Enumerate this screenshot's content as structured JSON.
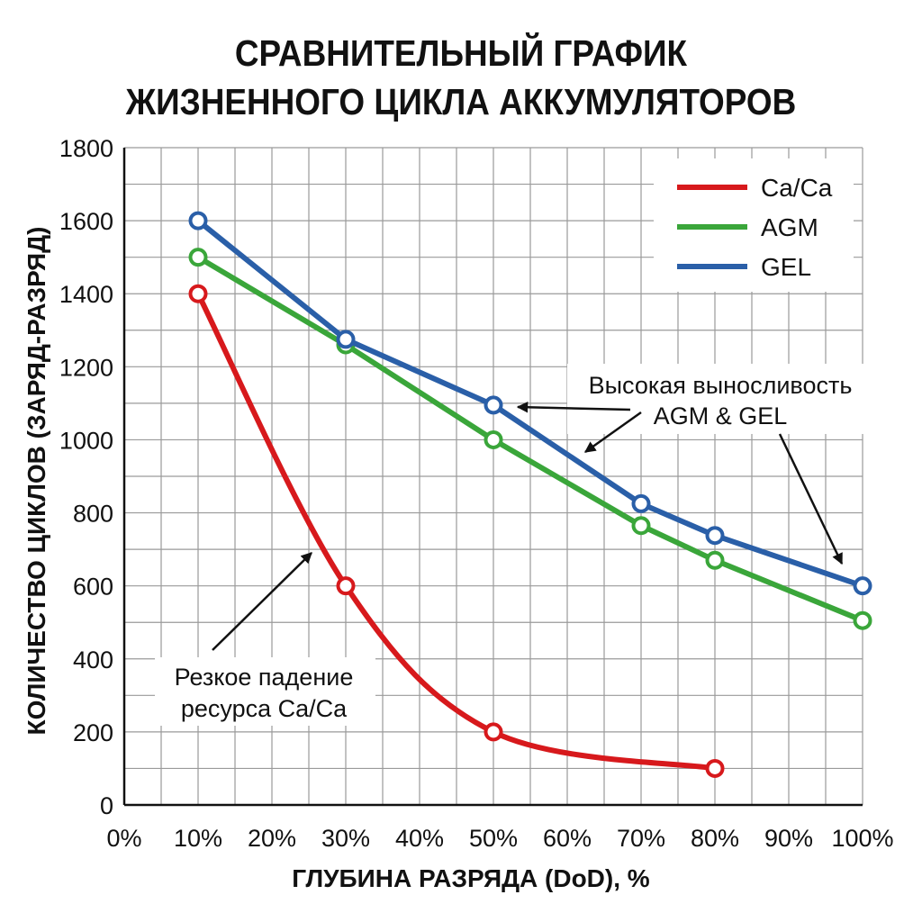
{
  "title_lines": [
    "СРАВНИТЕЛЬНЫЙ ГРАФИК",
    "ЖИЗНЕННОГО ЦИКЛА АККУМУЛЯТОРОВ"
  ],
  "chart_data": {
    "type": "line",
    "title": "СРАВНИТЕЛЬНЫЙ ГРАФИК ЖИЗНЕННОГО ЦИКЛА АККУМУЛЯТОРОВ",
    "xlabel": "ГЛУБИНА РАЗРЯДА (DoD), %",
    "ylabel": "КОЛИЧЕСТВО ЦИКЛОВ (ЗАРЯД-РАЗРЯД)",
    "xlim": [
      0,
      100
    ],
    "ylim": [
      0,
      1800
    ],
    "x_ticks": [
      0,
      10,
      20,
      30,
      40,
      50,
      60,
      70,
      80,
      90,
      100
    ],
    "x_tick_labels": [
      "0%",
      "10%",
      "20%",
      "30%",
      "40%",
      "50%",
      "60%",
      "70%",
      "80%",
      "90%",
      "100%"
    ],
    "y_ticks": [
      0,
      200,
      400,
      600,
      800,
      1000,
      1200,
      1400,
      1600,
      1800
    ],
    "grid": true,
    "legend_position": "top-right",
    "series": [
      {
        "name": "Ca/Ca",
        "color": "#d7191c",
        "smooth": true,
        "x": [
          10,
          30,
          50,
          80
        ],
        "y": [
          1400,
          600,
          200,
          100
        ]
      },
      {
        "name": "AGM",
        "color": "#3aa63a",
        "smooth": false,
        "x": [
          10,
          30,
          50,
          70,
          80,
          100
        ],
        "y": [
          1500,
          1260,
          1000,
          765,
          670,
          505
        ]
      },
      {
        "name": "GEL",
        "color": "#2a5fa8",
        "smooth": false,
        "x": [
          10,
          30,
          50,
          70,
          80,
          100
        ],
        "y": [
          1600,
          1275,
          1095,
          825,
          738,
          600
        ]
      }
    ],
    "annotations": [
      {
        "id": "ann_agm_gel",
        "lines": [
          "Высокая выносливость",
          "AGM & GEL"
        ]
      },
      {
        "id": "ann_caca",
        "lines": [
          "Резкое падение",
          "ресурса Ca/Ca"
        ]
      }
    ]
  }
}
